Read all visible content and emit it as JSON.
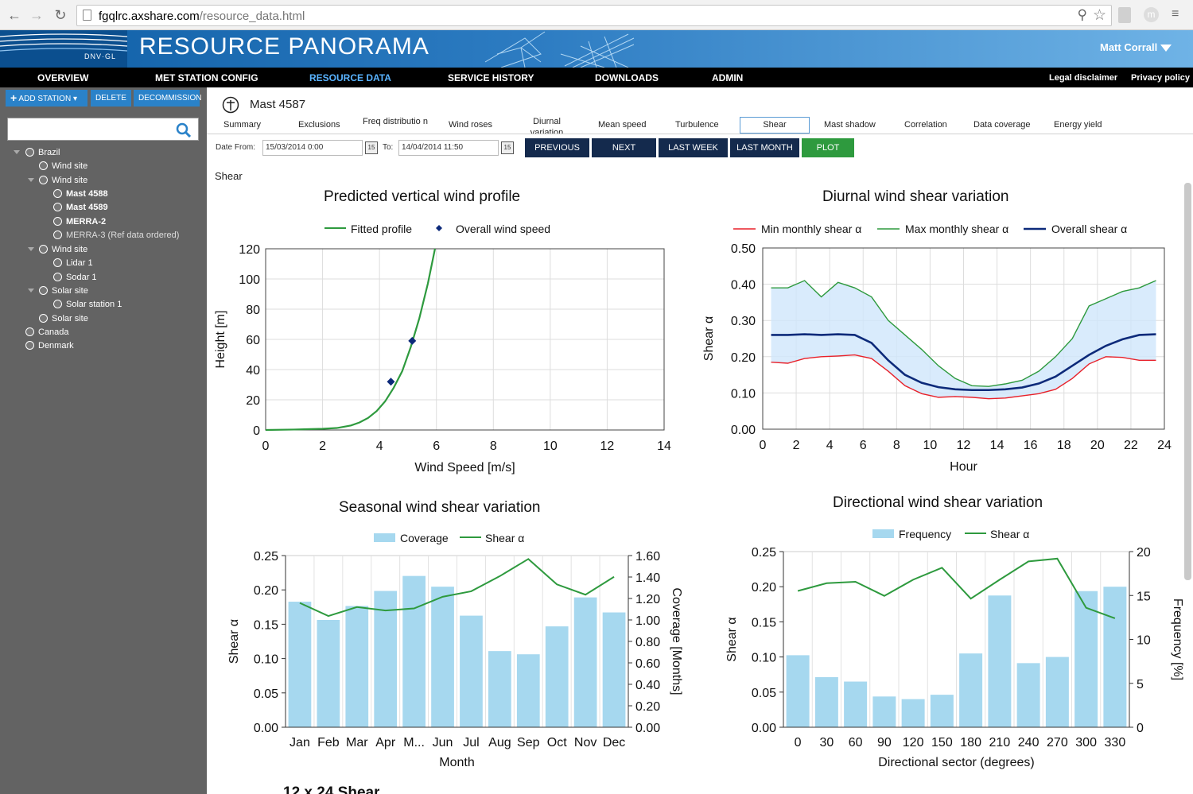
{
  "browser": {
    "url_host": "fgqlrc.axshare.com",
    "url_path": "/resource_data.html"
  },
  "banner": {
    "brand": "RESOURCE PANORAMA",
    "logo_text": "DNV·GL",
    "user": "Matt Corrall"
  },
  "menu": {
    "items": [
      "OVERVIEW",
      "MET STATION CONFIG",
      "RESOURCE DATA",
      "SERVICE HISTORY",
      "DOWNLOADS",
      "ADMIN"
    ],
    "active": "RESOURCE DATA",
    "legal": "Legal disclaimer",
    "privacy": "Privacy policy"
  },
  "sidebar": {
    "add_station": "ADD STATION",
    "delete": "DELETE",
    "decommission": "DECOMMISSION",
    "search_placeholder": "",
    "tree": [
      {
        "label": "Brazil",
        "icon": "globe-icon"
      },
      {
        "label": "Wind site",
        "icon": "wind-site-icon"
      },
      {
        "label": "Wind site",
        "icon": "wind-site-icon"
      },
      {
        "label": "Mast 4588",
        "icon": "mast-icon"
      },
      {
        "label": "Mast 4589",
        "icon": "mast-icon"
      },
      {
        "label": "MERRA-2",
        "icon": "merra-icon"
      },
      {
        "label": "MERRA-3 (Ref data ordered)",
        "icon": "merra-icon"
      },
      {
        "label": "Wind site",
        "icon": "wind-site-icon"
      },
      {
        "label": "Lidar 1",
        "icon": "lidar-icon"
      },
      {
        "label": "Sodar 1",
        "icon": "sodar-icon"
      },
      {
        "label": "Solar site",
        "icon": "solar-site-icon"
      },
      {
        "label": "Solar station 1",
        "icon": "solar-station-icon"
      },
      {
        "label": "Solar site",
        "icon": "solar-site-icon"
      },
      {
        "label": "Canada",
        "icon": "globe-icon"
      },
      {
        "label": "Denmark",
        "icon": "globe-icon"
      }
    ]
  },
  "station": {
    "title": "Mast 4587"
  },
  "tabs": [
    "Summary",
    "Exclusions",
    "Freq distributio n",
    "Wind roses",
    "Diurnal variation",
    "Mean speed",
    "Turbulence",
    "Shear",
    "Mast shadow",
    "Correlation",
    "Data coverage",
    "Energy yield"
  ],
  "active_tab": "Shear",
  "dates": {
    "from_label": "Date From:",
    "from_value": "15/03/2014 0:00",
    "to_label": "To:",
    "to_value": "14/04/2014 11:50",
    "calendar_day": "15"
  },
  "buttons": {
    "previous": "PREVIOUS",
    "next": "NEXT",
    "last_week": "LAST WEEK",
    "last_month": "LAST MONTH",
    "plot": "PLOT"
  },
  "section_label": "Shear",
  "bottom_title_partial": "12 x 24 Shear",
  "colors": {
    "brand_blue": "#0f5fa6",
    "nav_dark": "#142a4d",
    "plot_green": "#2e9a3e",
    "bar_blue": "#a6d8ef",
    "overall_navy": "#0d2a7a",
    "min_red": "#e8212a"
  },
  "chart_data": [
    {
      "type": "line",
      "title": "Predicted vertical wind profile",
      "xlabel": "Wind Speed [m/s]",
      "ylabel": "Height [m]",
      "xlim": [
        0,
        14
      ],
      "ylim": [
        0,
        120
      ],
      "xticks": [
        0,
        2,
        4,
        6,
        8,
        10,
        12,
        14
      ],
      "yticks": [
        0,
        20,
        40,
        60,
        80,
        100,
        120
      ],
      "grid": true,
      "legend": "top",
      "series": [
        {
          "name": "Fitted profile",
          "kind": "line",
          "color": "#2e9a3e",
          "x": [
            0,
            1,
            2,
            2.5,
            3,
            3.3,
            3.6,
            3.9,
            4.2,
            4.5,
            4.8,
            5.1,
            5.4,
            5.7,
            5.95
          ],
          "y": [
            0,
            0.3,
            0.8,
            1.3,
            3,
            5,
            8,
            12.5,
            19,
            28,
            39,
            55,
            74,
            97,
            120
          ]
        },
        {
          "name": "Overall wind speed",
          "kind": "points",
          "color": "#0d2a7a",
          "x": [
            4.4,
            5.15
          ],
          "y": [
            32,
            59
          ]
        }
      ]
    },
    {
      "type": "line",
      "title": "Diurnal wind shear variation",
      "xlabel": "Hour",
      "ylabel": "Shear α",
      "xlim": [
        0,
        24
      ],
      "ylim": [
        0,
        0.5
      ],
      "xticks": [
        0,
        2,
        4,
        6,
        8,
        10,
        12,
        14,
        16,
        18,
        20,
        22,
        24
      ],
      "yticks": [
        "0.00",
        "0.10",
        "0.20",
        "0.30",
        "0.40",
        "0.50"
      ],
      "grid": true,
      "legend": "top",
      "x": [
        0.5,
        1.5,
        2.5,
        3.5,
        4.5,
        5.5,
        6.5,
        7.5,
        8.5,
        9.5,
        10.5,
        11.5,
        12.5,
        13.5,
        14.5,
        15.5,
        16.5,
        17.5,
        18.5,
        19.5,
        20.5,
        21.5,
        22.5,
        23.5
      ],
      "series": [
        {
          "name": "Min monthly shear α",
          "color": "#e8212a",
          "values": [
            0.185,
            0.182,
            0.195,
            0.2,
            0.202,
            0.205,
            0.195,
            0.16,
            0.12,
            0.098,
            0.088,
            0.09,
            0.088,
            0.084,
            0.086,
            0.092,
            0.098,
            0.11,
            0.14,
            0.18,
            0.2,
            0.198,
            0.19,
            0.19
          ]
        },
        {
          "name": "Max monthly shear α",
          "color": "#2e9a3e",
          "values": [
            0.39,
            0.39,
            0.41,
            0.365,
            0.405,
            0.39,
            0.365,
            0.3,
            0.26,
            0.22,
            0.175,
            0.14,
            0.12,
            0.118,
            0.125,
            0.135,
            0.16,
            0.2,
            0.25,
            0.34,
            0.36,
            0.38,
            0.39,
            0.41
          ]
        },
        {
          "name": "Overall shear α",
          "color": "#0d2a7a",
          "values": [
            0.26,
            0.26,
            0.262,
            0.26,
            0.262,
            0.26,
            0.238,
            0.19,
            0.15,
            0.128,
            0.116,
            0.11,
            0.108,
            0.108,
            0.11,
            0.115,
            0.126,
            0.145,
            0.175,
            0.205,
            0.23,
            0.248,
            0.26,
            0.262
          ]
        }
      ]
    },
    {
      "type": "bar",
      "title": "Seasonal wind shear variation",
      "xlabel": "Month",
      "ylabel": "Shear α",
      "y2label": "Coverage [Months]",
      "categories": [
        "Jan",
        "Feb",
        "Mar",
        "Apr",
        "M...",
        "Jun",
        "Jul",
        "Aug",
        "Sep",
        "Oct",
        "Nov",
        "Dec"
      ],
      "ylim": [
        0,
        0.25
      ],
      "y2lim": [
        0,
        1.6
      ],
      "yticks": [
        "0.00",
        "0.05",
        "0.10",
        "0.15",
        "0.20",
        "0.25"
      ],
      "y2ticks": [
        "0.00",
        "0.20",
        "0.40",
        "0.60",
        "0.80",
        "1.00",
        "1.20",
        "1.40",
        "1.60"
      ],
      "legend": "top",
      "series": [
        {
          "name": "Coverage",
          "kind": "bar",
          "axis": "right",
          "color": "#a6d8ef",
          "values": [
            1.17,
            1.0,
            1.13,
            1.27,
            1.41,
            1.31,
            1.04,
            0.71,
            0.68,
            0.94,
            1.21,
            1.07
          ]
        },
        {
          "name": "Shear α",
          "kind": "line",
          "axis": "left",
          "color": "#2e9a3e",
          "values": [
            0.181,
            0.162,
            0.175,
            0.17,
            0.173,
            0.19,
            0.198,
            0.22,
            0.245,
            0.208,
            0.193,
            0.219
          ]
        }
      ]
    },
    {
      "type": "bar",
      "title": "Directional wind shear variation",
      "xlabel": "Directional sector (degrees)",
      "ylabel": "Shear α",
      "y2label": "Frequency [%]",
      "categories": [
        "0",
        "30",
        "60",
        "90",
        "120",
        "150",
        "180",
        "210",
        "240",
        "270",
        "300",
        "330"
      ],
      "ylim": [
        0,
        0.25
      ],
      "y2lim": [
        0,
        20
      ],
      "yticks": [
        "0.00",
        "0.05",
        "0.10",
        "0.15",
        "0.20",
        "0.25"
      ],
      "y2ticks": [
        "0",
        "5",
        "10",
        "15",
        "20"
      ],
      "legend": "top",
      "series": [
        {
          "name": "Frequency",
          "kind": "bar",
          "axis": "right",
          "color": "#a6d8ef",
          "values": [
            8.2,
            5.7,
            5.2,
            3.5,
            3.2,
            3.7,
            8.4,
            15.0,
            7.3,
            8.0,
            15.5,
            16.0
          ]
        },
        {
          "name": "Shear α",
          "kind": "line",
          "axis": "left",
          "color": "#2e9a3e",
          "values": [
            0.194,
            0.205,
            0.207,
            0.187,
            0.21,
            0.227,
            0.183,
            0.21,
            0.236,
            0.24,
            0.17,
            0.155
          ]
        }
      ]
    }
  ]
}
